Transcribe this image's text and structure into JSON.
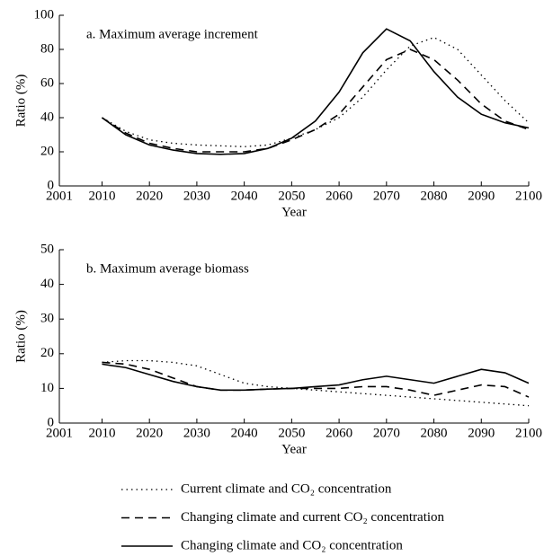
{
  "chart_data": [
    {
      "type": "line",
      "title": "a. Maximum average increment",
      "x_label": "Year",
      "y_label": "Ratio (%)",
      "x": [
        2010,
        2015,
        2020,
        2025,
        2030,
        2035,
        2040,
        2045,
        2050,
        2055,
        2060,
        2065,
        2070,
        2075,
        2080,
        2085,
        2090,
        2095,
        2100
      ],
      "xlim": [
        2001,
        2100
      ],
      "xticks": [
        2001,
        2010,
        2020,
        2030,
        2040,
        2050,
        2060,
        2070,
        2080,
        2090,
        2100
      ],
      "ylim": [
        0,
        100
      ],
      "yticks": [
        0,
        20,
        40,
        60,
        80,
        100
      ],
      "series": [
        {
          "name": "Current climate and CO₂ concentration",
          "color": "#000000",
          "dash": "dotted",
          "values": [
            40,
            32,
            27,
            25,
            24,
            23.5,
            23,
            24,
            28,
            33,
            40,
            52,
            68,
            82,
            87,
            80,
            65,
            50,
            37
          ]
        },
        {
          "name": "Changing climate and current CO₂ concentration",
          "color": "#000000",
          "dash": "dashed",
          "values": [
            40,
            31,
            25,
            22,
            20,
            20,
            20,
            22,
            27,
            33,
            42,
            58,
            74,
            80,
            74,
            62,
            48,
            38,
            33
          ]
        },
        {
          "name": "Changing climate and CO₂ concentration",
          "color": "#000000",
          "dash": "solid",
          "values": [
            40,
            30,
            24,
            21,
            19,
            18.5,
            19,
            22,
            28,
            38,
            55,
            78,
            92,
            85,
            67,
            52,
            42,
            37,
            34
          ]
        }
      ]
    },
    {
      "type": "line",
      "title": "b. Maximum average biomass",
      "x_label": "Year",
      "y_label": "Ratio (%)",
      "x": [
        2010,
        2015,
        2020,
        2025,
        2030,
        2035,
        2040,
        2045,
        2050,
        2055,
        2060,
        2065,
        2070,
        2075,
        2080,
        2085,
        2090,
        2095,
        2100
      ],
      "xlim": [
        2001,
        2100
      ],
      "xticks": [
        2001,
        2010,
        2020,
        2030,
        2040,
        2050,
        2060,
        2070,
        2080,
        2090,
        2100
      ],
      "ylim": [
        0,
        50
      ],
      "yticks": [
        0,
        10,
        20,
        30,
        40,
        50
      ],
      "series": [
        {
          "color": "#000000",
          "dash": "dotted",
          "values": [
            17.5,
            18,
            18,
            17.5,
            16.5,
            14,
            11.5,
            10.5,
            10,
            9.5,
            9,
            8.5,
            8,
            7.5,
            7,
            6.5,
            6,
            5.5,
            5
          ]
        },
        {
          "color": "#000000",
          "dash": "dashed",
          "values": [
            17.5,
            17,
            15.5,
            13,
            10.5,
            9.5,
            9.5,
            9.8,
            10,
            10,
            10,
            10.5,
            10.5,
            9.5,
            8,
            9.5,
            11,
            10.5,
            7.5
          ]
        },
        {
          "color": "#000000",
          "dash": "solid",
          "values": [
            17,
            16,
            14,
            12,
            10.5,
            9.5,
            9.5,
            9.8,
            10,
            10.5,
            11,
            12.5,
            13.5,
            12.5,
            11.5,
            13.5,
            15.5,
            14.5,
            11.5
          ]
        }
      ]
    }
  ]
}
